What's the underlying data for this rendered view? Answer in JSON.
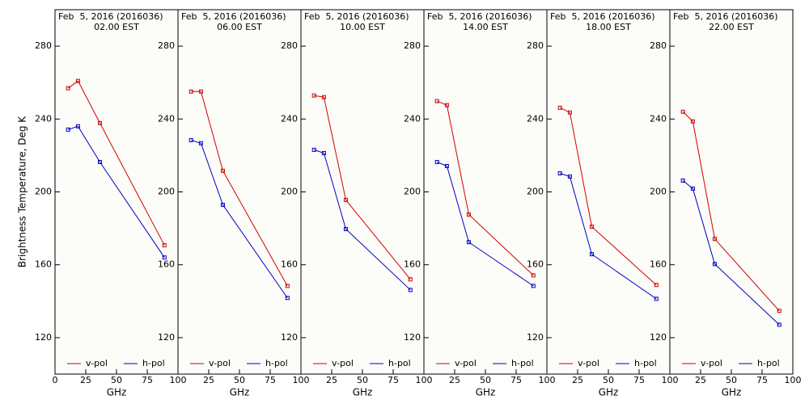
{
  "chart_data": [
    {
      "type": "line",
      "title": "Feb  5, 2016 (2016036)",
      "subtitle": "02.00 EST",
      "xlabel": "GHz",
      "ylabel": "Brightness Temperature, Deg K",
      "x": [
        10.65,
        18.7,
        36.5,
        89
      ],
      "xlim": [
        0,
        100
      ],
      "ylim": [
        100,
        300
      ],
      "xticks": [
        0,
        25,
        50,
        75,
        100
      ],
      "yticks": [
        120,
        160,
        200,
        240,
        280
      ],
      "series": [
        {
          "name": "v-pol",
          "color": "#d00000",
          "values": [
            256.9,
            260.9,
            237.8,
            170.7
          ]
        },
        {
          "name": "h-pol",
          "color": "#0000c0",
          "values": [
            234.2,
            236.0,
            216.4,
            164.0
          ]
        }
      ]
    },
    {
      "type": "line",
      "title": "Feb  5, 2016 (2016036)",
      "subtitle": "06.00 EST",
      "xlabel": "GHz",
      "x": [
        10.65,
        18.7,
        36.5,
        89
      ],
      "xlim": [
        0,
        100
      ],
      "ylim": [
        100,
        300
      ],
      "xticks": [
        25,
        50,
        75,
        100
      ],
      "yticks": [
        120,
        160,
        200,
        240,
        280
      ],
      "series": [
        {
          "name": "v-pol",
          "color": "#d00000",
          "values": [
            255.1,
            255.1,
            211.6,
            148.4
          ]
        },
        {
          "name": "h-pol",
          "color": "#0000c0",
          "values": [
            228.4,
            226.7,
            192.9,
            141.8
          ]
        }
      ]
    },
    {
      "type": "line",
      "title": "Feb  5, 2016 (2016036)",
      "subtitle": "10.00 EST",
      "xlabel": "GHz",
      "x": [
        10.65,
        18.7,
        36.5,
        89
      ],
      "xlim": [
        0,
        100
      ],
      "ylim": [
        100,
        300
      ],
      "xticks": [
        25,
        50,
        75,
        100
      ],
      "yticks": [
        120,
        160,
        200,
        240,
        280
      ],
      "series": [
        {
          "name": "v-pol",
          "color": "#d00000",
          "values": [
            252.9,
            252.0,
            195.6,
            152.0
          ]
        },
        {
          "name": "h-pol",
          "color": "#0000c0",
          "values": [
            223.1,
            221.3,
            179.6,
            146.2
          ]
        }
      ]
    },
    {
      "type": "line",
      "title": "Feb  5, 2016 (2016036)",
      "subtitle": "14.00 EST",
      "xlabel": "GHz",
      "x": [
        10.65,
        18.7,
        36.5,
        89
      ],
      "xlim": [
        0,
        100
      ],
      "ylim": [
        100,
        300
      ],
      "xticks": [
        25,
        50,
        75,
        100
      ],
      "yticks": [
        120,
        160,
        200,
        240,
        280
      ],
      "series": [
        {
          "name": "v-pol",
          "color": "#d00000",
          "values": [
            249.8,
            247.6,
            187.6,
            154.2
          ]
        },
        {
          "name": "h-pol",
          "color": "#0000c0",
          "values": [
            216.4,
            214.2,
            172.4,
            148.4
          ]
        }
      ]
    },
    {
      "type": "line",
      "title": "Feb  5, 2016 (2016036)",
      "subtitle": "18.00 EST",
      "xlabel": "GHz",
      "x": [
        10.65,
        18.7,
        36.5,
        89
      ],
      "xlim": [
        0,
        100
      ],
      "ylim": [
        100,
        300
      ],
      "xticks": [
        25,
        50,
        75,
        100
      ],
      "yticks": [
        120,
        160,
        200,
        240,
        280
      ],
      "series": [
        {
          "name": "v-pol",
          "color": "#d00000",
          "values": [
            246.2,
            243.6,
            180.9,
            148.9
          ]
        },
        {
          "name": "h-pol",
          "color": "#0000c0",
          "values": [
            210.2,
            208.4,
            165.8,
            141.3
          ]
        }
      ]
    },
    {
      "type": "line",
      "title": "Feb  5, 2016 (2016036)",
      "subtitle": "22.00 EST",
      "xlabel": "GHz",
      "x": [
        10.65,
        18.7,
        36.5,
        89
      ],
      "xlim": [
        0,
        100
      ],
      "ylim": [
        100,
        300
      ],
      "xticks": [
        25,
        50,
        75,
        100
      ],
      "yticks": [
        120,
        160,
        200,
        240,
        280
      ],
      "series": [
        {
          "name": "v-pol",
          "color": "#d00000",
          "values": [
            244.0,
            238.7,
            174.2,
            134.7
          ]
        },
        {
          "name": "h-pol",
          "color": "#0000c0",
          "values": [
            206.2,
            201.8,
            160.4,
            127.1
          ]
        }
      ]
    }
  ]
}
